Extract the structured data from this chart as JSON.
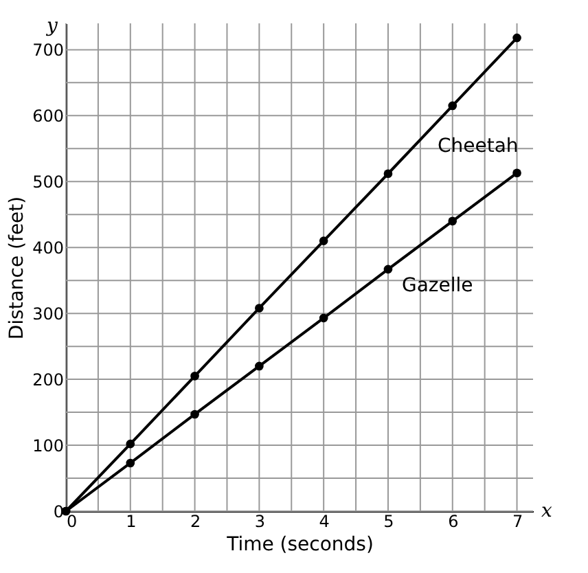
{
  "chart_data": {
    "type": "line",
    "xlabel": "Time (seconds)",
    "ylabel": "Distance (feet)",
    "x": [
      0,
      1,
      2,
      3,
      4,
      5,
      6,
      7
    ],
    "series": [
      {
        "name": "Cheetah",
        "color": "#000000",
        "values": [
          0,
          102,
          205,
          308,
          410,
          512,
          615,
          718
        ]
      },
      {
        "name": "Gazelle",
        "color": "#000000",
        "values": [
          0,
          73,
          147,
          220,
          293,
          367,
          440,
          513
        ]
      }
    ],
    "xlim": [
      0,
      7.25
    ],
    "ylim": [
      0,
      740
    ],
    "xticks": [
      0,
      {
        "value": 0.5,
        "label": null
      },
      1,
      {
        "value": 1.5,
        "label": null
      },
      2,
      {
        "value": 2.5,
        "label": null
      },
      3,
      {
        "value": 3.5,
        "label": null
      },
      4,
      {
        "value": 4.5,
        "label": null
      },
      5,
      {
        "value": 5.5,
        "label": null
      },
      6,
      {
        "value": 6.5,
        "label": null
      },
      7
    ],
    "yticks": [
      0,
      {
        "value": 50,
        "label": null
      },
      100,
      {
        "value": 150,
        "label": null
      },
      200,
      {
        "value": 250,
        "label": null
      },
      300,
      {
        "value": 350,
        "label": null
      },
      400,
      {
        "value": 450,
        "label": null
      },
      500,
      {
        "value": 550,
        "label": null
      },
      600,
      {
        "value": 650,
        "label": null
      },
      700
    ],
    "annotations": [
      "x",
      "y"
    ],
    "grid": true,
    "marker": "circle",
    "line_style": "solid"
  }
}
